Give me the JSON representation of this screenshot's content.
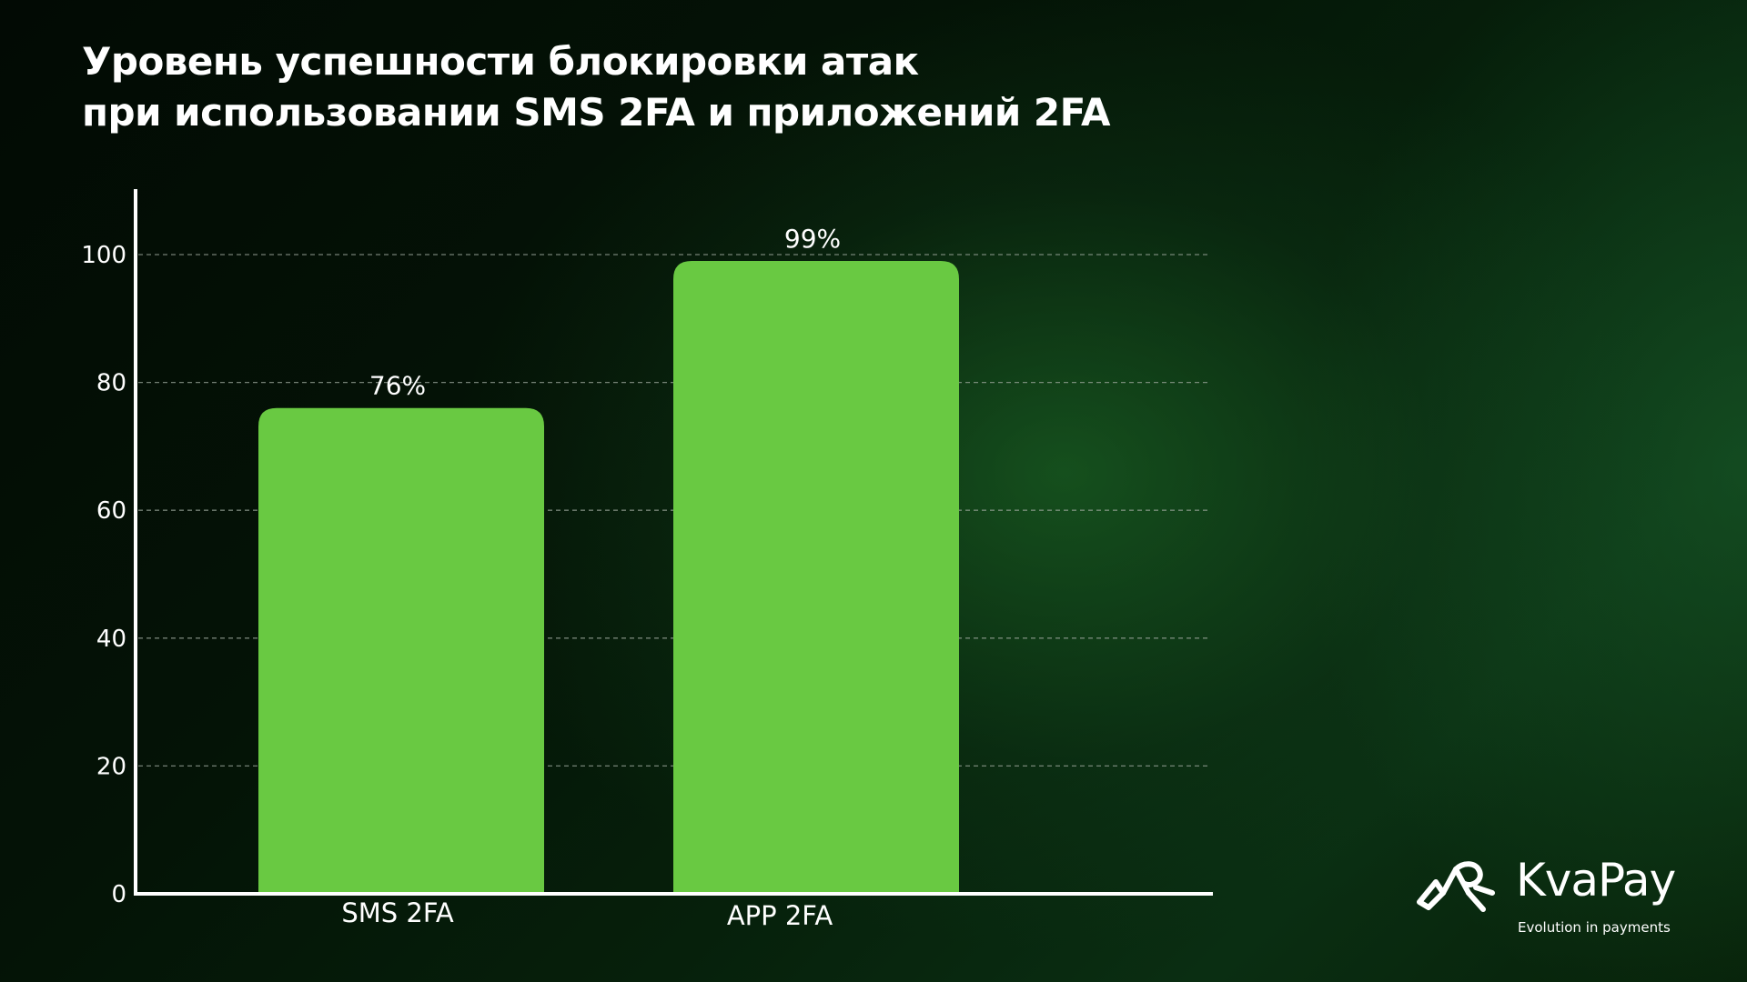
{
  "chart_data": {
    "type": "bar",
    "title": "Уровень успешности блокировки атак при использовании SMS 2FA и приложений 2FA",
    "title_lines": [
      "Уровень успешности блокировки атак",
      "при использовании SMS 2FA и приложений 2FA"
    ],
    "categories": [
      "SMS 2FA",
      "APP 2FA"
    ],
    "values": [
      76,
      99
    ],
    "data_labels": [
      "76%",
      "99%"
    ],
    "xlabel": "",
    "ylabel": "",
    "ylim": [
      0,
      110
    ],
    "yticks": [
      0,
      20,
      40,
      60,
      80,
      100
    ],
    "ytick_labels": [
      "0",
      "20",
      "40",
      "60",
      "80",
      "100"
    ],
    "grid": "horizontal dashed",
    "bar_color": "#69c942",
    "legend": "none"
  },
  "brand": {
    "name": "KvaPay",
    "tagline": "Evolution in payments",
    "logo_icon": "kvapay-frog-logo-icon"
  },
  "colors": {
    "bar": "#69c942",
    "text": "#ffffff",
    "grid": "#9aa59a"
  }
}
